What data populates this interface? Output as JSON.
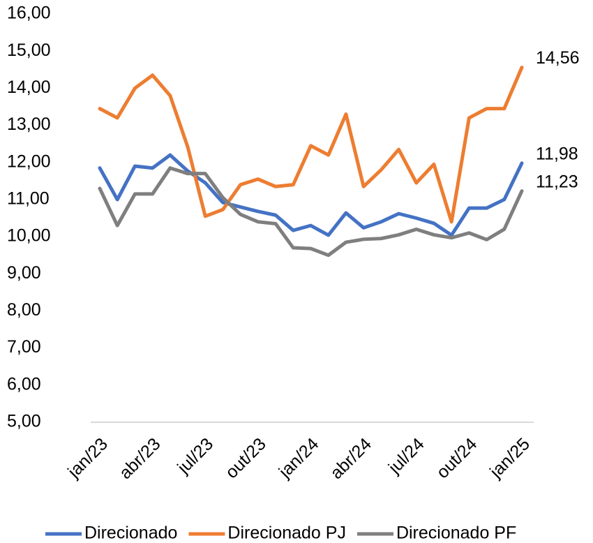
{
  "chart_data": {
    "type": "line",
    "categories": [
      "jan/23",
      null,
      null,
      "abr/23",
      null,
      null,
      "jul/23",
      null,
      null,
      "out/23",
      null,
      null,
      "jan/24",
      null,
      null,
      "abr/24",
      null,
      null,
      "jul/24",
      null,
      null,
      "out/24",
      null,
      null,
      "jan/25"
    ],
    "series": [
      {
        "name": "Direcionado",
        "color": "#4472c4",
        "values": [
          11.85,
          11.0,
          11.9,
          11.85,
          12.2,
          11.77,
          11.45,
          10.92,
          10.8,
          10.68,
          10.58,
          10.17,
          10.3,
          10.04,
          10.64,
          10.24,
          10.4,
          10.62,
          10.5,
          10.36,
          10.04,
          10.77,
          10.77,
          11.0,
          11.98
        ],
        "value_labels": [
          null,
          null,
          null,
          null,
          null,
          null,
          null,
          null,
          null,
          null,
          null,
          null,
          null,
          null,
          null,
          null,
          null,
          null,
          null,
          null,
          null,
          null,
          null,
          null,
          "11,98"
        ]
      },
      {
        "name": "Direcionado PJ",
        "color": "#ed7d31",
        "values": [
          13.45,
          13.2,
          14.0,
          14.35,
          13.8,
          12.42,
          10.55,
          10.73,
          11.4,
          11.55,
          11.35,
          11.4,
          12.45,
          12.2,
          13.3,
          11.35,
          11.8,
          12.35,
          11.45,
          11.95,
          10.4,
          13.2,
          13.45,
          13.45,
          14.56
        ],
        "value_labels": [
          null,
          null,
          null,
          null,
          null,
          null,
          null,
          null,
          null,
          null,
          null,
          null,
          null,
          null,
          null,
          null,
          null,
          null,
          null,
          null,
          null,
          null,
          null,
          null,
          "14,56"
        ]
      },
      {
        "name": "Direcionado PF",
        "color": "#7f7f7f",
        "values": [
          11.3,
          10.3,
          11.15,
          11.15,
          11.85,
          11.7,
          11.7,
          11.05,
          10.6,
          10.4,
          10.35,
          9.7,
          9.68,
          9.5,
          9.85,
          9.93,
          9.95,
          10.05,
          10.2,
          10.05,
          9.97,
          10.1,
          9.92,
          10.2,
          11.23
        ],
        "value_labels": [
          null,
          null,
          null,
          null,
          null,
          null,
          null,
          null,
          null,
          null,
          null,
          null,
          null,
          null,
          null,
          null,
          null,
          null,
          null,
          null,
          null,
          null,
          null,
          null,
          "11,23"
        ]
      }
    ],
    "ylim": [
      5,
      16
    ],
    "yticks": [
      {
        "value": 5,
        "label": "5,00"
      },
      {
        "value": 6,
        "label": "6,00"
      },
      {
        "value": 7,
        "label": "7,00"
      },
      {
        "value": 8,
        "label": "8,00"
      },
      {
        "value": 9,
        "label": "9,00"
      },
      {
        "value": 10,
        "label": "10,00"
      },
      {
        "value": 11,
        "label": "11,00"
      },
      {
        "value": 12,
        "label": "12,00"
      },
      {
        "value": 13,
        "label": "13,00"
      },
      {
        "value": 14,
        "label": "14,00"
      },
      {
        "value": 15,
        "label": "15,00"
      },
      {
        "value": 16,
        "label": "16,00"
      }
    ],
    "grid": false,
    "legend": "bottom"
  }
}
